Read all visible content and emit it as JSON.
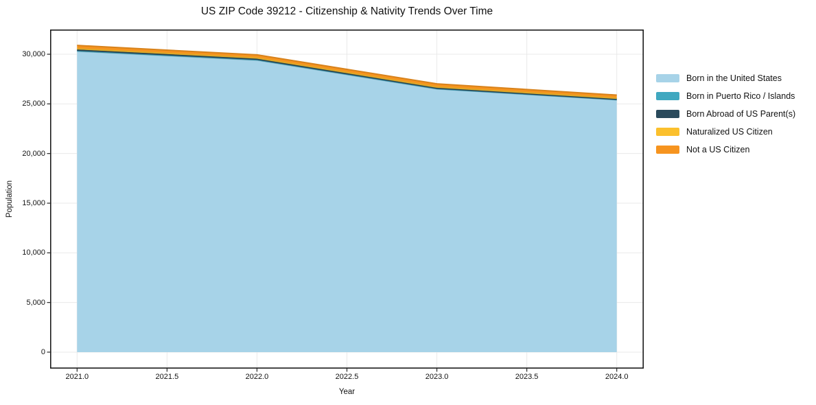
{
  "chart_data": {
    "type": "area",
    "stacked": true,
    "title": "US ZIP Code 39212 - Citizenship & Nativity Trends Over Time",
    "xlabel": "Year",
    "ylabel": "Population",
    "x": [
      2021.0,
      2022.0,
      2023.0,
      2024.0
    ],
    "series": [
      {
        "name": "Born in the United States",
        "color": "#a7d3e8",
        "values": [
          30300,
          29400,
          26500,
          25400
        ]
      },
      {
        "name": "Born in Puerto Rico / Islands",
        "color": "#40a8c0",
        "values": [
          40,
          35,
          30,
          25
        ]
      },
      {
        "name": "Born Abroad of US Parent(s)",
        "color": "#2a4a5c",
        "values": [
          80,
          70,
          60,
          50
        ]
      },
      {
        "name": "Naturalized US Citizen",
        "color": "#fbc02d",
        "values": [
          130,
          115,
          100,
          90
        ]
      },
      {
        "name": "Not a US Citizen",
        "color": "#f6941f",
        "values": [
          340,
          320,
          330,
          320
        ]
      }
    ],
    "x_ticks": {
      "values": [
        2021.0,
        2021.5,
        2022.0,
        2022.5,
        2023.0,
        2023.5,
        2024.0
      ],
      "labels": [
        "2021.0",
        "2021.5",
        "2022.0",
        "2022.5",
        "2023.0",
        "2023.5",
        "2024.0"
      ]
    },
    "y_ticks": {
      "values": [
        0,
        5000,
        10000,
        15000,
        20000,
        25000,
        30000
      ],
      "labels": [
        "0",
        "5,000",
        "10,000",
        "15,000",
        "20,000",
        "25,000",
        "30,000"
      ]
    },
    "xlim": [
      2020.85,
      2024.15
    ],
    "ylim": [
      -1660,
      32490
    ],
    "grid": true,
    "grid_color": "#e9e9e9",
    "frame_color": "#1a1a1a",
    "legend_position": "right-outside"
  }
}
